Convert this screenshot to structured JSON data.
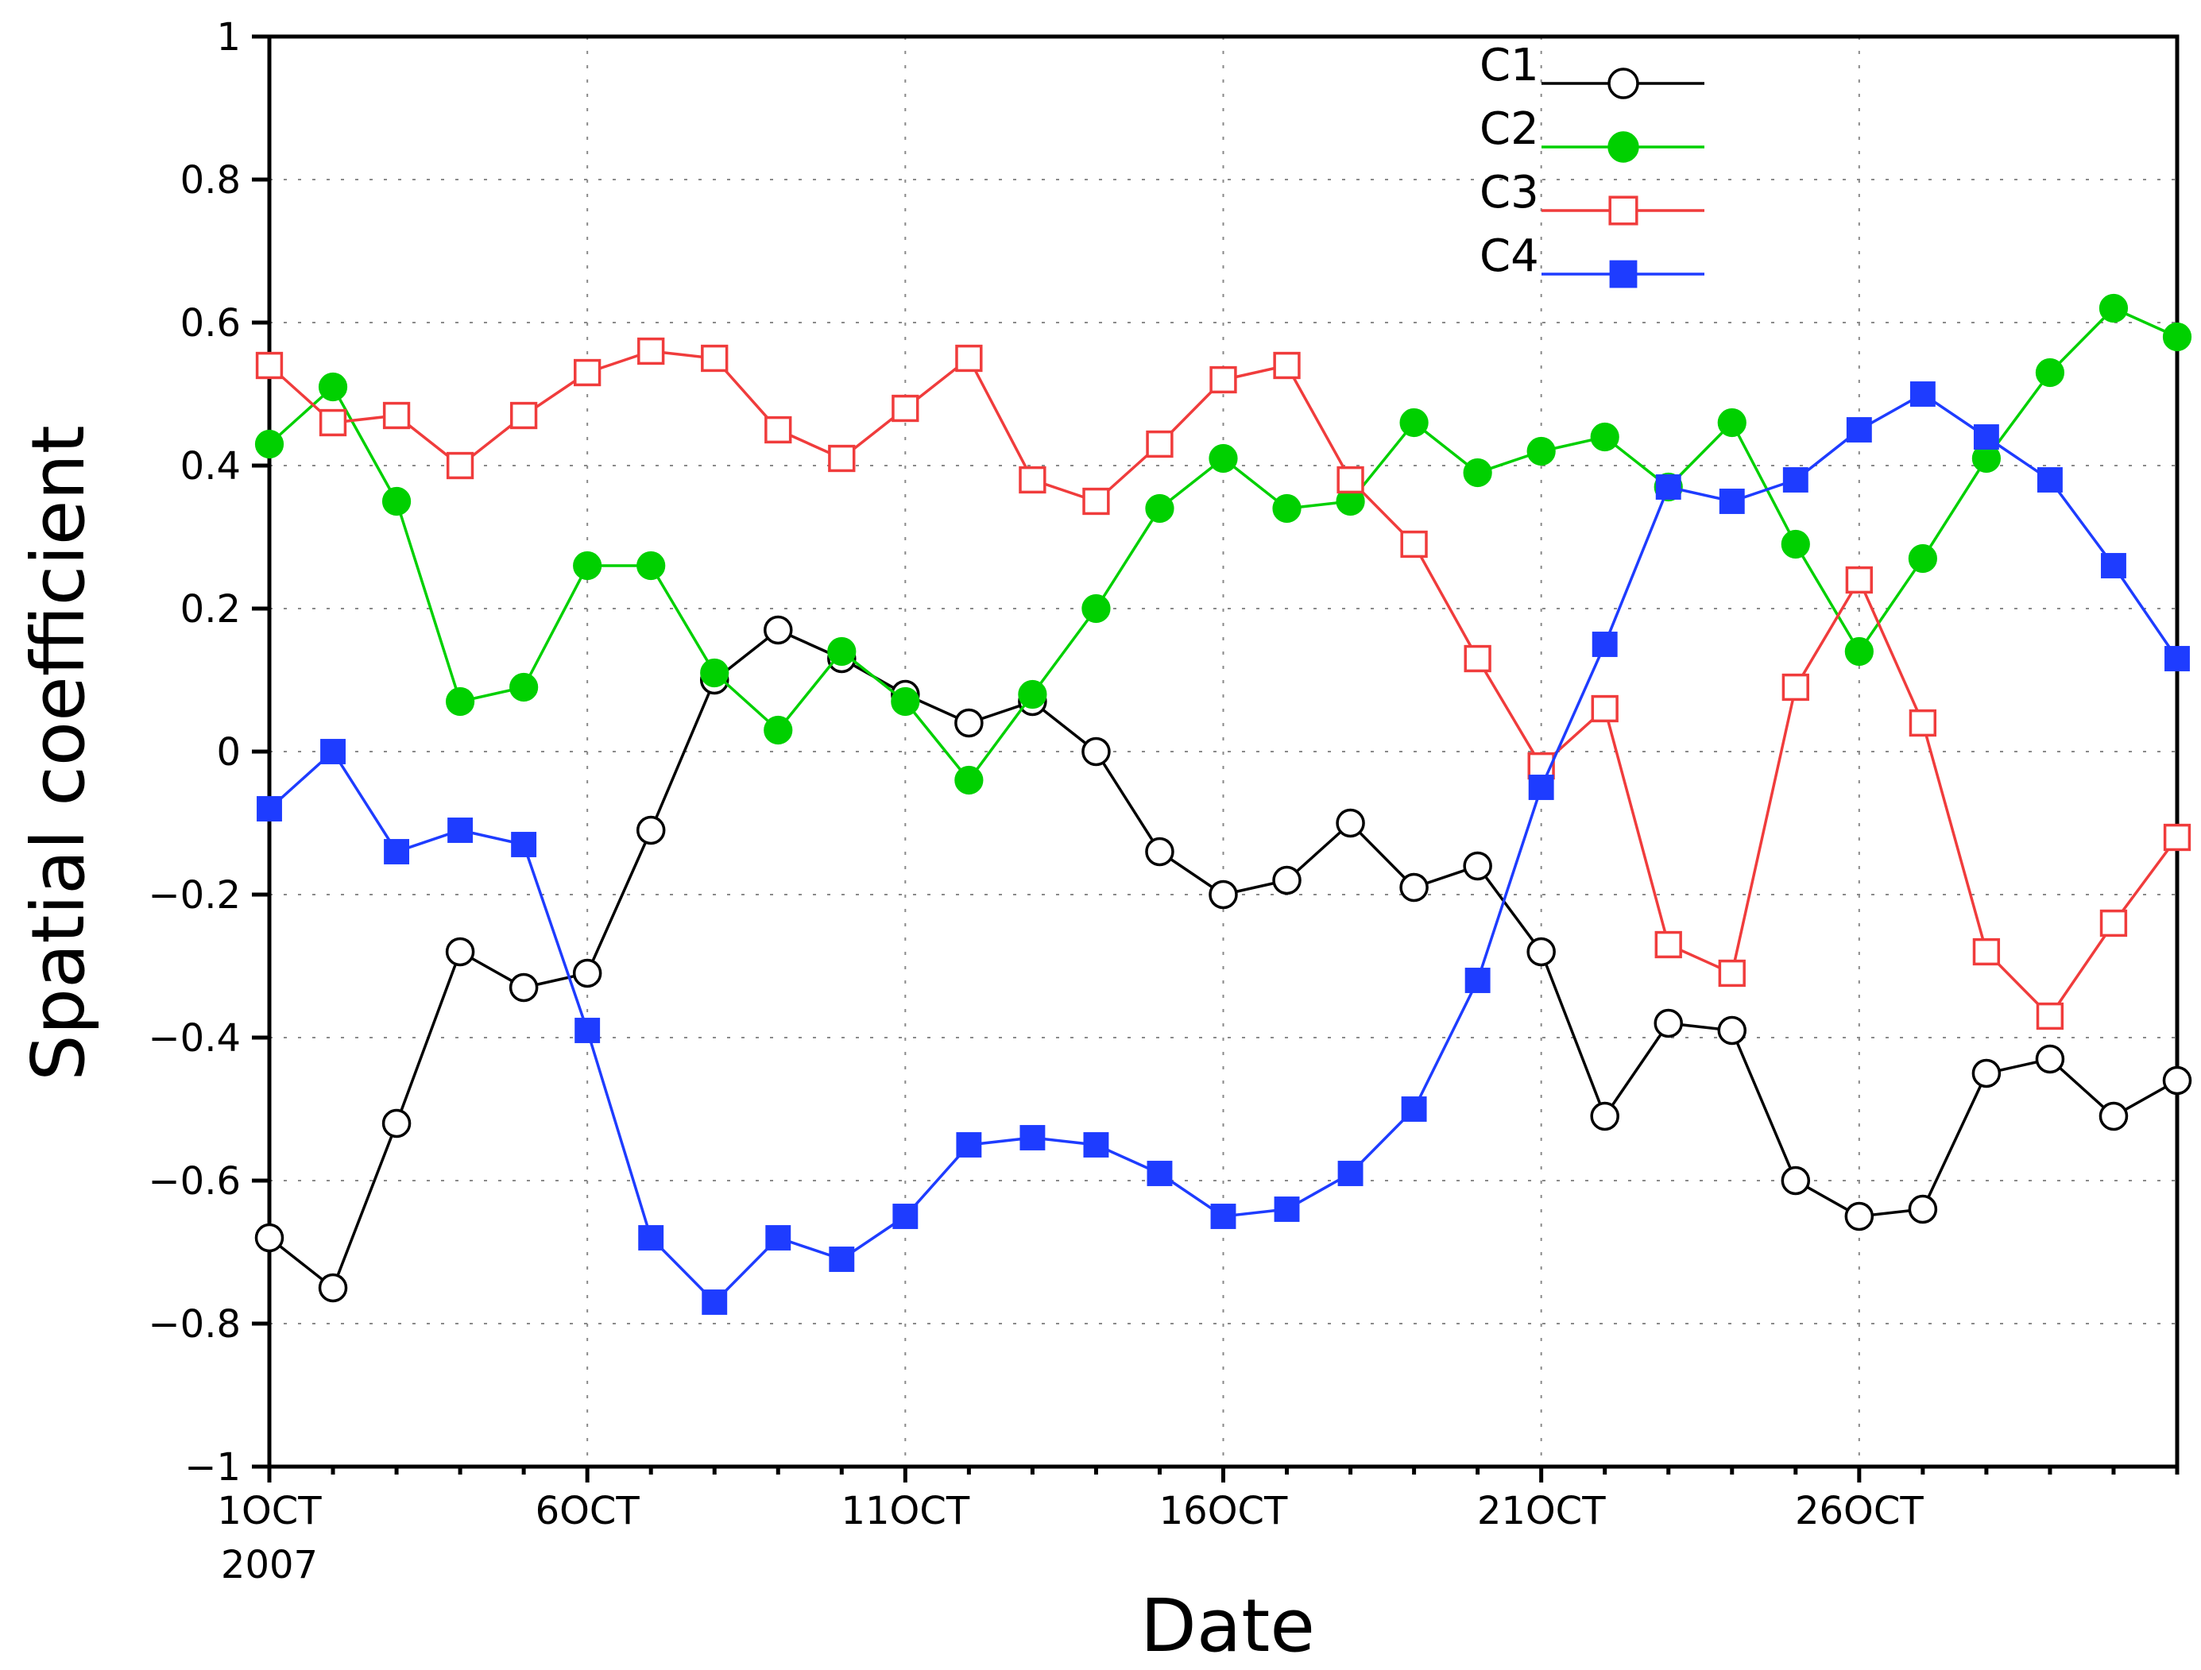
{
  "chart_data": {
    "type": "line",
    "title": "",
    "xlabel": "Date",
    "ylabel": "Spatial coefficient",
    "ylim": [
      -1,
      1
    ],
    "yticks": [
      1,
      0.8,
      0.6,
      0.4,
      0.2,
      0,
      -0.2,
      -0.4,
      -0.6,
      -0.8,
      -1
    ],
    "ytick_labels": [
      "1",
      "0.8",
      "0.6",
      "0.4",
      "0.2",
      "0",
      "−0.2",
      "−0.4",
      "−0.6",
      "−0.8",
      "−1"
    ],
    "x": [
      1,
      2,
      3,
      4,
      5,
      6,
      7,
      8,
      9,
      10,
      11,
      12,
      13,
      14,
      15,
      16,
      17,
      18,
      19,
      20,
      21,
      22,
      23,
      24,
      25,
      26,
      27,
      28,
      29,
      30,
      31
    ],
    "xlim": [
      1,
      31
    ],
    "xticks": [
      1,
      6,
      11,
      16,
      21,
      26
    ],
    "xtick_labels": [
      "1OCT",
      "6OCT",
      "11OCT",
      "16OCT",
      "21OCT",
      "26OCT"
    ],
    "xtick_sublabel": "2007",
    "grid": true,
    "legend_position": "top-right",
    "series": [
      {
        "name": "C1",
        "color": "#000000",
        "marker": "open-circle",
        "values": [
          -0.68,
          -0.75,
          -0.52,
          -0.28,
          -0.33,
          -0.31,
          -0.11,
          0.1,
          0.17,
          0.13,
          0.08,
          0.04,
          0.07,
          0.0,
          -0.14,
          -0.2,
          -0.18,
          -0.1,
          -0.19,
          -0.16,
          -0.28,
          -0.51,
          -0.38,
          -0.39,
          -0.6,
          -0.65,
          -0.64,
          -0.45,
          -0.43,
          -0.51,
          -0.46
        ]
      },
      {
        "name": "C2",
        "color": "#00d000",
        "marker": "filled-circle",
        "values": [
          0.43,
          0.51,
          0.35,
          0.07,
          0.09,
          0.26,
          0.26,
          0.11,
          0.03,
          0.14,
          0.07,
          -0.04,
          0.08,
          0.2,
          0.34,
          0.41,
          0.34,
          0.35,
          0.46,
          0.39,
          0.42,
          0.44,
          0.37,
          0.46,
          0.29,
          0.14,
          0.27,
          0.41,
          0.53,
          0.62,
          0.58
        ]
      },
      {
        "name": "C3",
        "color": "#f03c3c",
        "marker": "open-square",
        "values": [
          0.54,
          0.46,
          0.47,
          0.4,
          0.47,
          0.53,
          0.56,
          0.55,
          0.45,
          0.41,
          0.48,
          0.55,
          0.38,
          0.35,
          0.43,
          0.52,
          0.54,
          0.38,
          0.29,
          0.13,
          -0.02,
          0.06,
          -0.27,
          -0.31,
          0.09,
          0.24,
          0.04,
          -0.28,
          -0.37,
          -0.24,
          -0.12
        ]
      },
      {
        "name": "C4",
        "color": "#1e3cff",
        "marker": "filled-square",
        "values": [
          -0.08,
          0.0,
          -0.14,
          -0.11,
          -0.13,
          -0.39,
          -0.68,
          -0.77,
          -0.68,
          -0.71,
          -0.65,
          -0.55,
          -0.54,
          -0.55,
          -0.59,
          -0.65,
          -0.64,
          -0.59,
          -0.5,
          -0.32,
          -0.05,
          0.15,
          0.37,
          0.35,
          0.38,
          0.45,
          0.5,
          0.44,
          0.38,
          0.26,
          0.13
        ]
      }
    ]
  }
}
